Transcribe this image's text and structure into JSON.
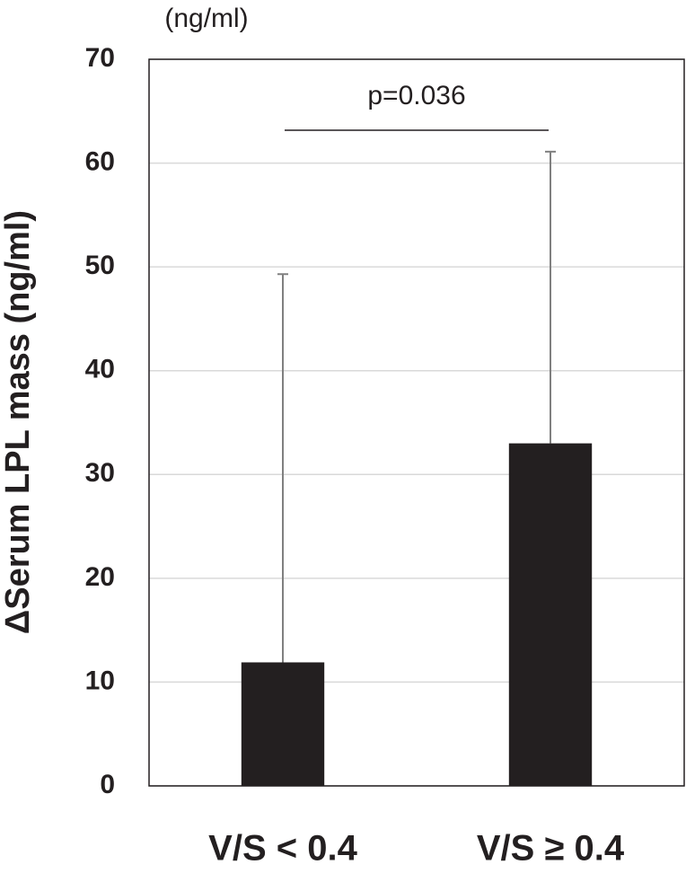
{
  "chart_data": {
    "type": "bar",
    "unit_label": "(ng/ml)",
    "y_label": "ΔSerum LPL mass (ng/ml)",
    "categories": [
      "V/S < 0.4",
      "V/S ≥ 0.4"
    ],
    "values": [
      11.9,
      33.0
    ],
    "errors": [
      37.4,
      28.1
    ],
    "color": "#231f20",
    "ylim": [
      0,
      70
    ],
    "yticks": [
      0,
      10,
      20,
      30,
      40,
      50,
      60,
      70
    ],
    "grid": true,
    "annotation": "p=0.036"
  }
}
